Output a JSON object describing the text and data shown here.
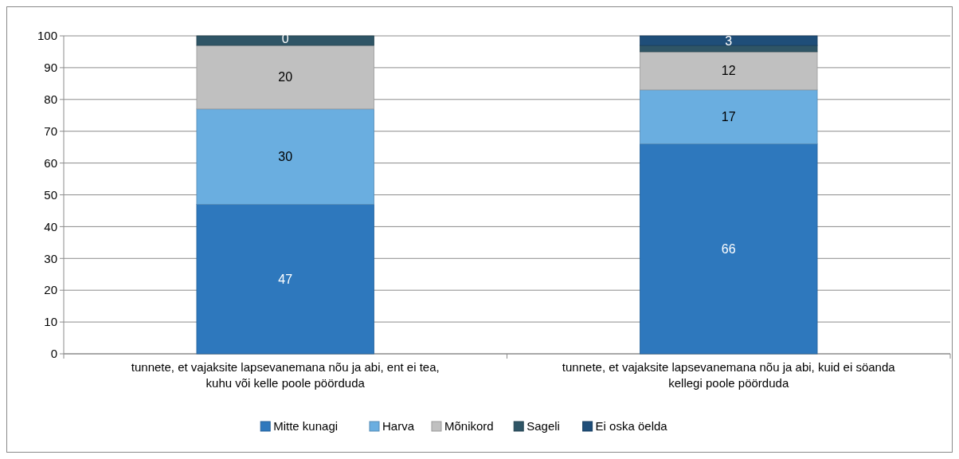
{
  "chart_data": {
    "type": "bar",
    "stacked": true,
    "categories": [
      "tunnete, et vajaksite lapsevanemana nõu ja abi, ent ei tea, kuhu või kelle poole pöörduda",
      "tunnete, et vajaksite lapsevanemana nõu ja abi, kuid ei söanda kellegi poole pöörduda"
    ],
    "series": [
      {
        "name": "Mitte kunagi",
        "color": "#2e78bd",
        "values": [
          47,
          66
        ],
        "value_labels": [
          "47",
          "66"
        ]
      },
      {
        "name": "Harva",
        "color": "#6aaee0",
        "values": [
          30,
          17
        ],
        "value_labels": [
          "30",
          "17"
        ]
      },
      {
        "name": "Mõnikord",
        "color": "#c0c0c0",
        "values": [
          20,
          12
        ],
        "value_labels": [
          "20",
          "12"
        ]
      },
      {
        "name": "Sageli",
        "color": "#2f5566",
        "values": [
          3,
          2
        ],
        "value_labels": [
          null,
          null
        ]
      },
      {
        "name": "Ei oska öelda",
        "color": "#1f4e79",
        "values": [
          0,
          3
        ],
        "value_labels": [
          "0",
          "3"
        ]
      }
    ],
    "ylim": [
      0,
      100
    ],
    "yticks": [
      0,
      10,
      20,
      30,
      40,
      50,
      60,
      70,
      80,
      90,
      100
    ],
    "grid": "y",
    "legend": "bottom"
  }
}
